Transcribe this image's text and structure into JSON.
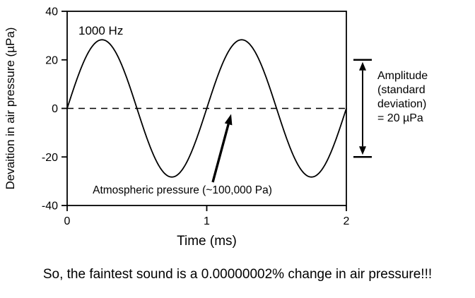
{
  "caption": "So, the faintest sound is a 0.00000002% change in air pressure!!!",
  "chart_data": {
    "type": "line",
    "title": "",
    "xlabel": "Time (ms)",
    "ylabel": "Devaition in air pressure (µPa)",
    "xlim": [
      0,
      2
    ],
    "ylim": [
      -40,
      40
    ],
    "xticks": [
      0,
      1,
      2
    ],
    "yticks": [
      -40,
      -20,
      0,
      20,
      40
    ],
    "grid": false,
    "legend": "none",
    "series": [
      {
        "name": "1000 Hz pure tone",
        "waveform": "sine",
        "amplitude_uPa": 28.28,
        "frequency_hz": 1000,
        "period_ms": 1,
        "phase_deg": 0
      }
    ],
    "zero_line": {
      "y": 0,
      "style": "dashed"
    },
    "annotations": {
      "frequency_label": "1000 Hz",
      "atmospheric_label": "Atmospheric pressure (~100,000 Pa)",
      "amplitude_label_lines": [
        "Amplitude",
        "(standard",
        "deviation)",
        "= 20 µPa"
      ],
      "amplitude_span_uPa": [
        -20,
        20
      ]
    },
    "colors": {
      "line": "#000000",
      "background": "#ffffff"
    }
  }
}
